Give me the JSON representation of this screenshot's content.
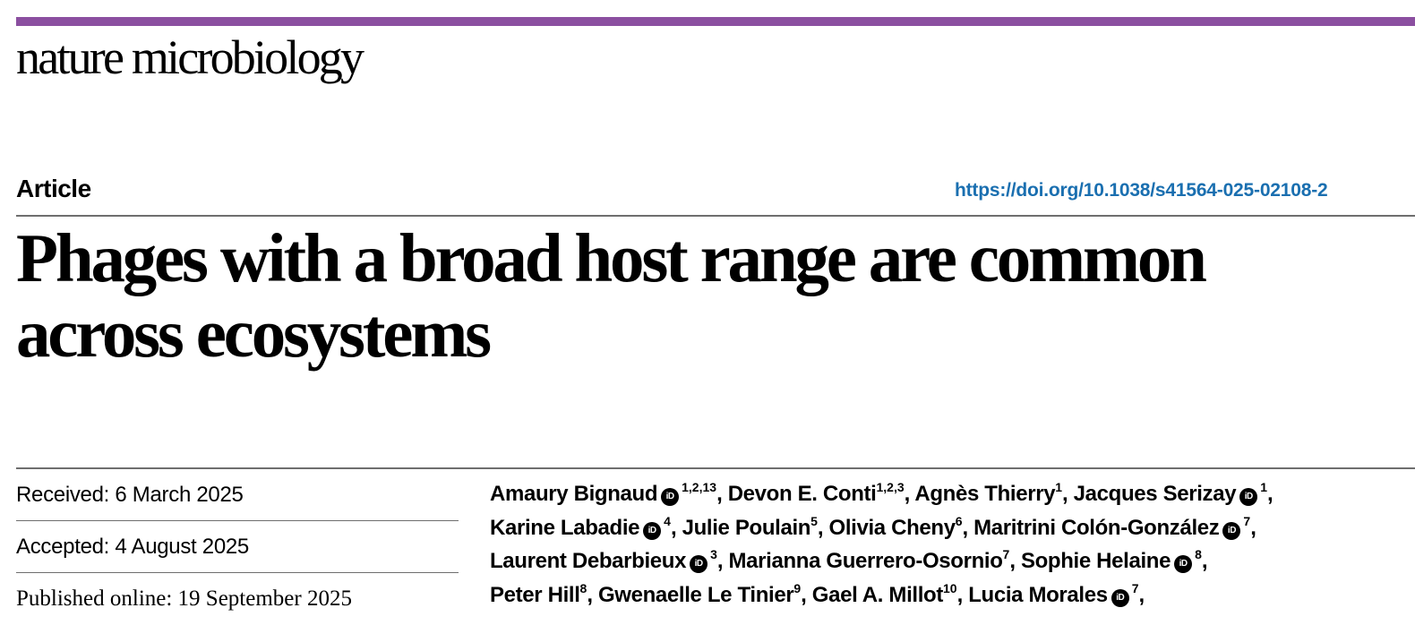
{
  "journal": "nature microbiology",
  "article_type": "Article",
  "doi": "https://doi.org/10.1038/s41564-025-02108-2",
  "title_line1": "Phages with a broad host range are common",
  "title_line2": "across ecosystems",
  "dates": {
    "received": "Received: 6 March 2025",
    "accepted": "Accepted: 4 August 2025",
    "published": "Published online: 19 September 2025"
  },
  "orcid_icon": "orcid-icon",
  "brand_color": "#8b4fa0",
  "link_color": "#1a6fb0",
  "authors": [
    {
      "name": "Amaury Bignaud",
      "orcid": true,
      "aff": "1,2,13",
      "sep": ", "
    },
    {
      "name": "Devon E. Conti",
      "orcid": false,
      "aff": "1,2,3",
      "sep": ", "
    },
    {
      "name": "Agnès Thierry",
      "orcid": false,
      "aff": "1",
      "sep": ", "
    },
    {
      "name": "Jacques Serizay",
      "orcid": true,
      "aff": "1",
      "sep": ","
    },
    {
      "name": "Karine Labadie",
      "orcid": true,
      "aff": "4",
      "sep": ", "
    },
    {
      "name": "Julie Poulain",
      "orcid": false,
      "aff": "5",
      "sep": ", "
    },
    {
      "name": "Olivia Cheny",
      "orcid": false,
      "aff": "6",
      "sep": ", "
    },
    {
      "name": "Maritrini Colón-González",
      "orcid": true,
      "aff": "7",
      "sep": ","
    },
    {
      "name": "Laurent Debarbieux",
      "orcid": true,
      "aff": "3",
      "sep": ", "
    },
    {
      "name": "Marianna Guerrero-Osornio",
      "orcid": false,
      "aff": "7",
      "sep": ", "
    },
    {
      "name": "Sophie Helaine",
      "orcid": true,
      "aff": "8",
      "sep": ","
    },
    {
      "name": "Peter Hill",
      "orcid": false,
      "aff": "8",
      "sep": ", "
    },
    {
      "name": "Gwenaelle Le Tinier",
      "orcid": false,
      "aff": "9",
      "sep": ", "
    },
    {
      "name": "Gael A. Millot",
      "orcid": false,
      "aff": "10",
      "sep": ", "
    },
    {
      "name": "Lucia Morales",
      "orcid": true,
      "aff": "7",
      "sep": ","
    }
  ],
  "author_lines": [
    [
      0,
      1,
      2,
      3
    ],
    [
      4,
      5,
      6,
      7
    ],
    [
      8,
      9,
      10
    ],
    [
      11,
      12,
      13,
      14
    ]
  ]
}
